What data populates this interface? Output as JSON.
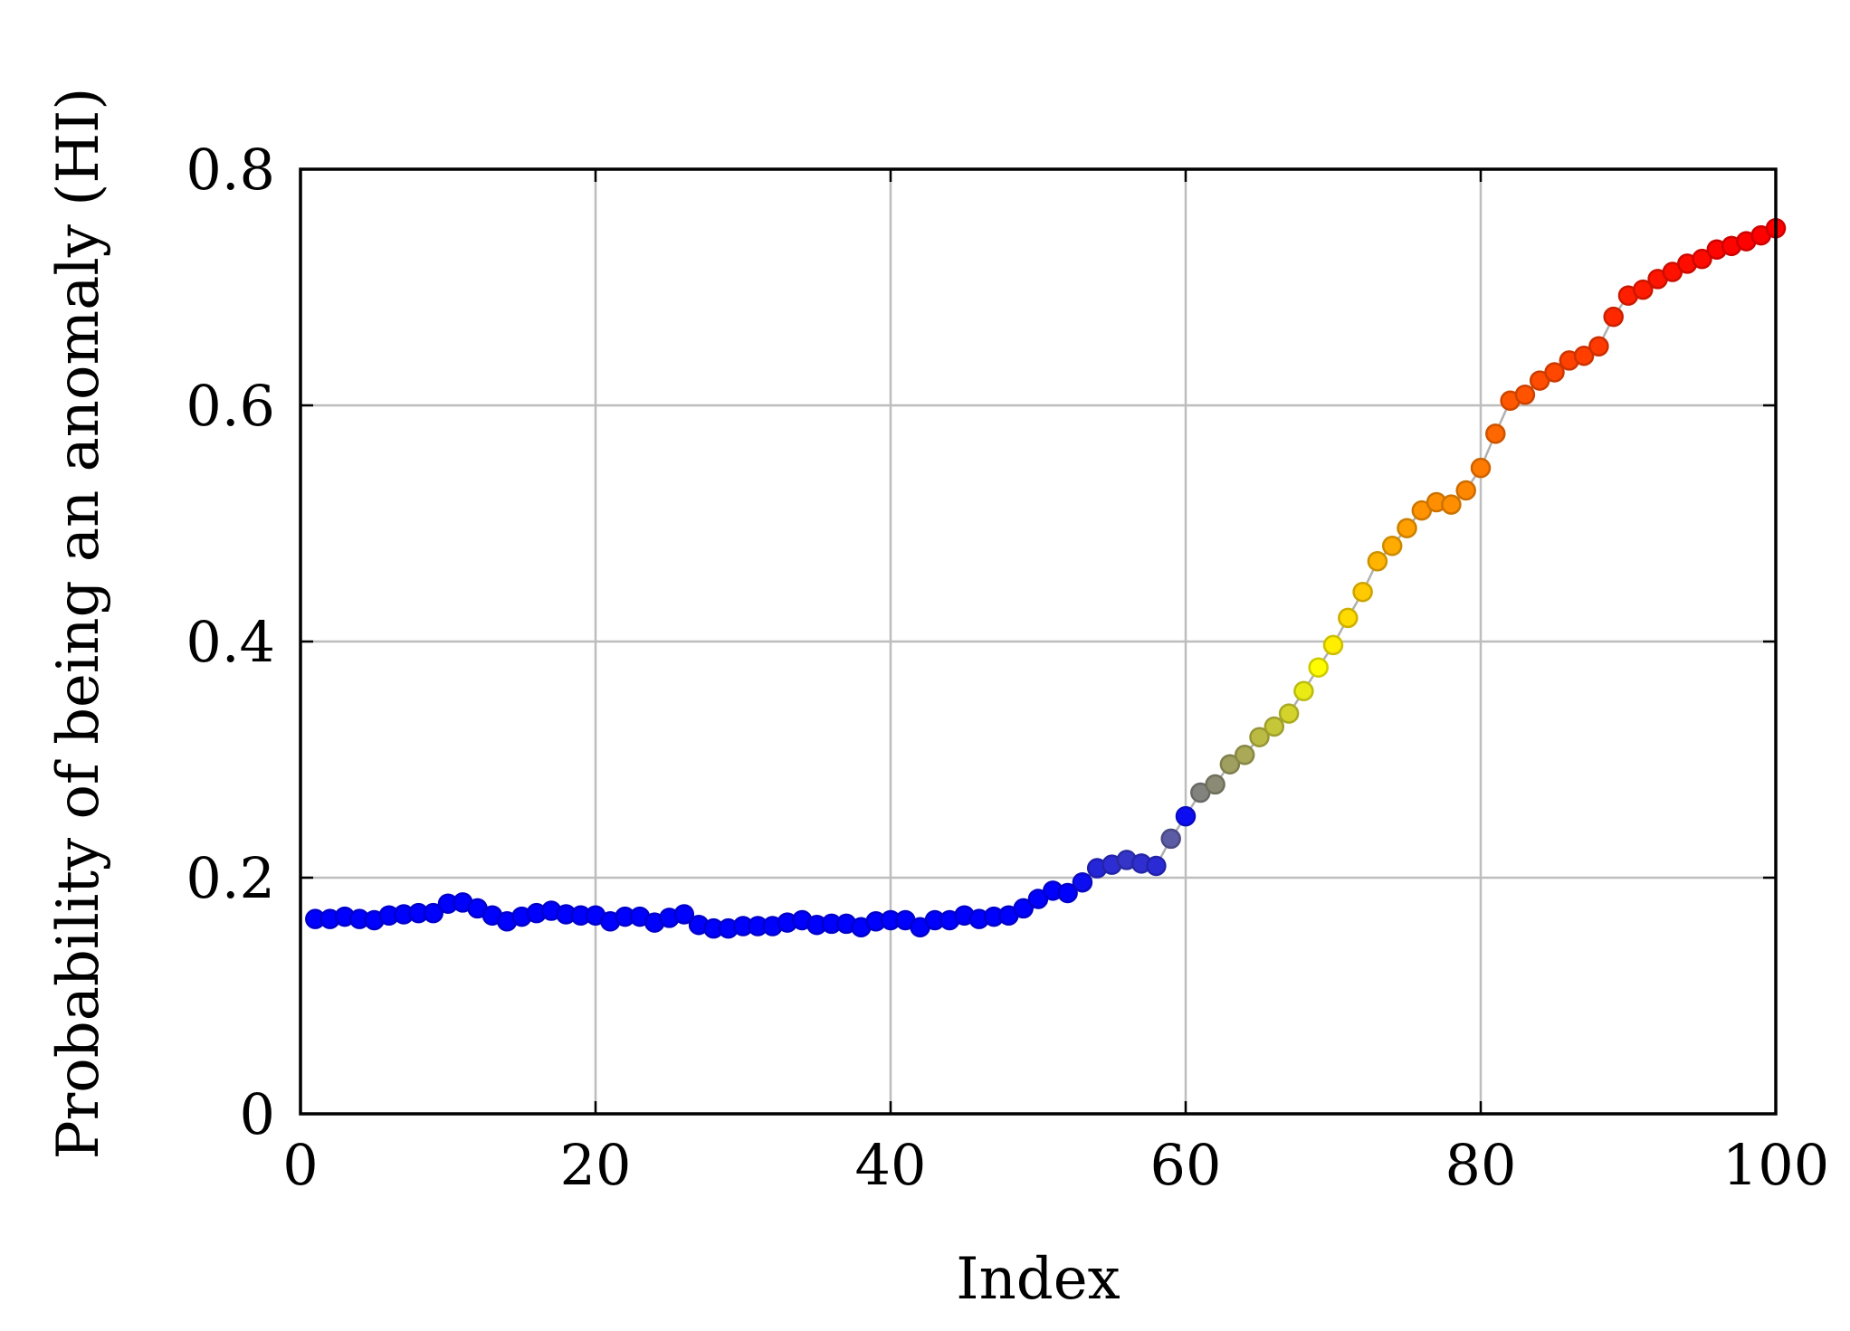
{
  "chart_data": {
    "type": "scatter",
    "xlabel": "Index",
    "ylabel": "Probability of being an anomaly (HI)",
    "xlim": [
      0,
      100
    ],
    "ylim": [
      0,
      0.8
    ],
    "xticks": [
      0,
      20,
      40,
      60,
      80,
      100
    ],
    "yticks": [
      0,
      0.2,
      0.4,
      0.6,
      0.8
    ],
    "ytick_labels": [
      "0",
      "0.2",
      "0.4",
      "0.6",
      "0.8"
    ],
    "grid": true,
    "colormap": [
      "#0000ff",
      "#808080",
      "#ffff00",
      "#ff8c00",
      "#ff0000"
    ],
    "series": [
      {
        "x": [
          1,
          2,
          3,
          4,
          5,
          6,
          7,
          8,
          9,
          10,
          11,
          12,
          13,
          14,
          15,
          16,
          17,
          18,
          19,
          20,
          21,
          22,
          23,
          24,
          25,
          26,
          27,
          28,
          29,
          30,
          31,
          32,
          33,
          34,
          35,
          36,
          37,
          38,
          39,
          40,
          41,
          42,
          43,
          44,
          45,
          46,
          47,
          48,
          49,
          50,
          51,
          52,
          53,
          54,
          55,
          56,
          57,
          58,
          59,
          60,
          61,
          62,
          63,
          64,
          65,
          66,
          67,
          68,
          69,
          70,
          71,
          72,
          73,
          74,
          75,
          76,
          77,
          78,
          79,
          80,
          81,
          82,
          83,
          84,
          85,
          86,
          87,
          88,
          89,
          90,
          91,
          92,
          93,
          94,
          95,
          96,
          97,
          98,
          99,
          100
        ],
        "y": [
          0.165,
          0.165,
          0.167,
          0.165,
          0.164,
          0.168,
          0.169,
          0.17,
          0.17,
          0.178,
          0.179,
          0.174,
          0.168,
          0.163,
          0.167,
          0.17,
          0.172,
          0.169,
          0.168,
          0.168,
          0.163,
          0.167,
          0.167,
          0.162,
          0.166,
          0.169,
          0.16,
          0.157,
          0.157,
          0.159,
          0.159,
          0.159,
          0.162,
          0.164,
          0.16,
          0.161,
          0.161,
          0.158,
          0.163,
          0.164,
          0.164,
          0.158,
          0.164,
          0.164,
          0.168,
          0.165,
          0.167,
          0.168,
          0.174,
          0.182,
          0.189,
          0.187,
          0.196,
          0.208,
          0.211,
          0.215,
          0.212,
          0.21,
          0.233,
          0.252,
          0.272,
          0.279,
          0.296,
          0.304,
          0.319,
          0.328,
          0.339,
          0.358,
          0.378,
          0.397,
          0.42,
          0.442,
          0.468,
          0.481,
          0.496,
          0.511,
          0.518,
          0.516,
          0.528,
          0.547,
          0.576,
          0.604,
          0.609,
          0.621,
          0.628,
          0.638,
          0.642,
          0.65,
          0.675,
          0.693,
          0.698,
          0.707,
          0.713,
          0.72,
          0.724,
          0.732,
          0.735,
          0.739,
          0.744,
          0.75
        ]
      }
    ]
  }
}
